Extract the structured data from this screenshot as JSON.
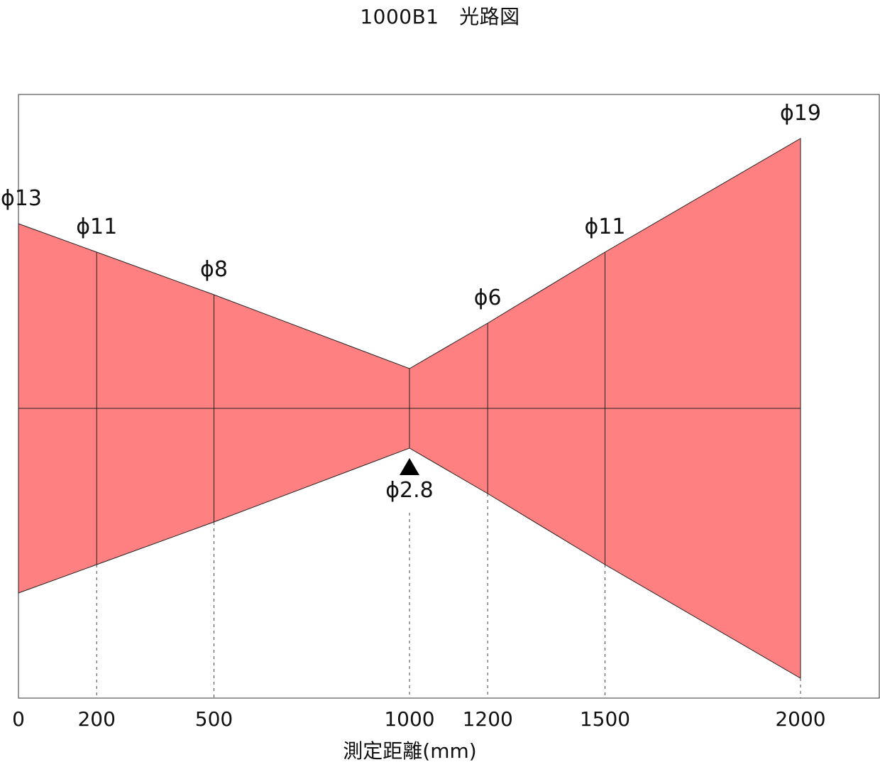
{
  "title": "1000B1　光路図",
  "x_axis_label": "測定距離(mm)",
  "colors": {
    "beam_fill": "#ff8080",
    "line": "#222222"
  },
  "marker": {
    "icon": "triangle-up-icon",
    "distance": 1000
  },
  "chart_data": {
    "type": "area",
    "title": "1000B1　光路図",
    "xlabel": "測定距離(mm)",
    "ylabel": "",
    "xlim": [
      0,
      2000
    ],
    "x_ticks": [
      0,
      200,
      500,
      1000,
      1200,
      1500,
      2000
    ],
    "tick_labels": [
      "0",
      "200",
      "500",
      "1000",
      "1200",
      "1500",
      "2000"
    ],
    "points": [
      {
        "x": 0,
        "diameter": 13,
        "label": "ϕ13"
      },
      {
        "x": 200,
        "diameter": 11,
        "label": "ϕ11"
      },
      {
        "x": 500,
        "diameter": 8,
        "label": "ϕ8"
      },
      {
        "x": 1000,
        "diameter": 2.8,
        "label": "ϕ2.8"
      },
      {
        "x": 1200,
        "diameter": 6,
        "label": "ϕ6"
      },
      {
        "x": 1500,
        "diameter": 11,
        "label": "ϕ11"
      },
      {
        "x": 2000,
        "diameter": 19,
        "label": "ϕ19"
      }
    ]
  }
}
